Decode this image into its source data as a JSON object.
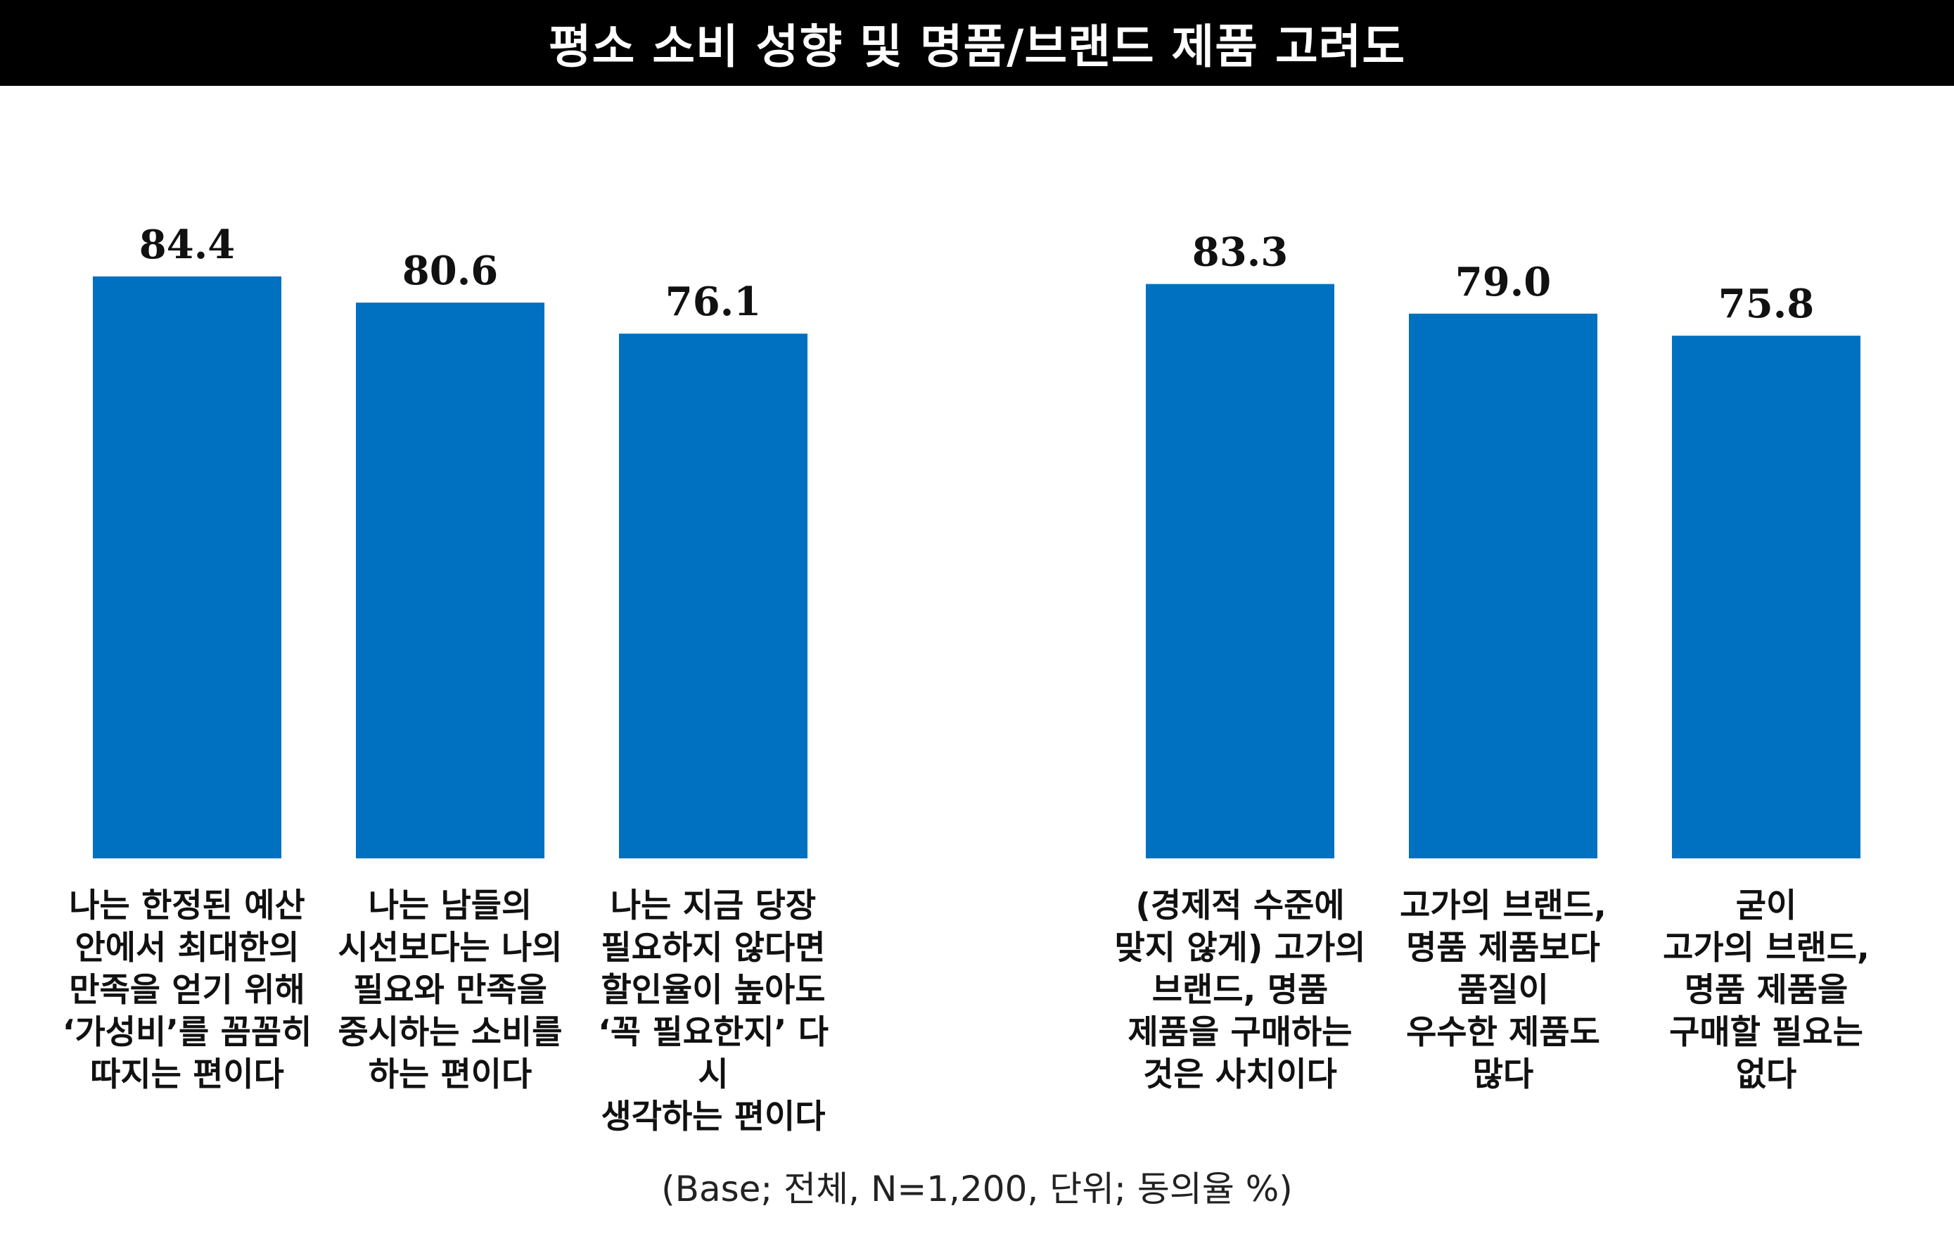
{
  "title": "평소 소비 성향 및 명품/브랜드 제품 고려도",
  "footnote": "(Base; 전체, N=1,200, 단위; 동의율 %)",
  "colors": {
    "bar": "#0070C0",
    "title_bg": "#000000",
    "title_text": "#ffffff"
  },
  "chart_data": {
    "type": "bar",
    "categories": [
      "나는 한정된 예산\n안에서 최대한의\n만족을 얻기 위해\n‘가성비’를 꼼꼼히\n따지는 편이다",
      "나는 남들의\n시선보다는 나의\n필요와 만족을\n중시하는 소비를\n하는 편이다",
      "나는 지금 당장\n필요하지 않다면\n할인율이 높아도\n‘꼭 필요한지’ 다시\n생각하는 편이다",
      "(경제적 수준에\n맞지 않게) 고가의\n브랜드, 명품\n제품을 구매하는\n것은 사치이다",
      "고가의 브랜드,\n명품 제품보다\n품질이\n우수한 제품도\n많다",
      "굳이\n고가의 브랜드,\n명품 제품을\n구매할 필요는\n없다"
    ],
    "values": [
      84.4,
      80.6,
      76.1,
      83.3,
      79.0,
      75.8
    ],
    "value_labels": [
      "84.4",
      "80.6",
      "76.1",
      "83.3",
      "79.0",
      "75.8"
    ],
    "groups": [
      [
        0,
        1,
        2
      ],
      [
        3,
        4,
        5
      ]
    ],
    "grid": false,
    "legend": "none",
    "unit": "%"
  }
}
